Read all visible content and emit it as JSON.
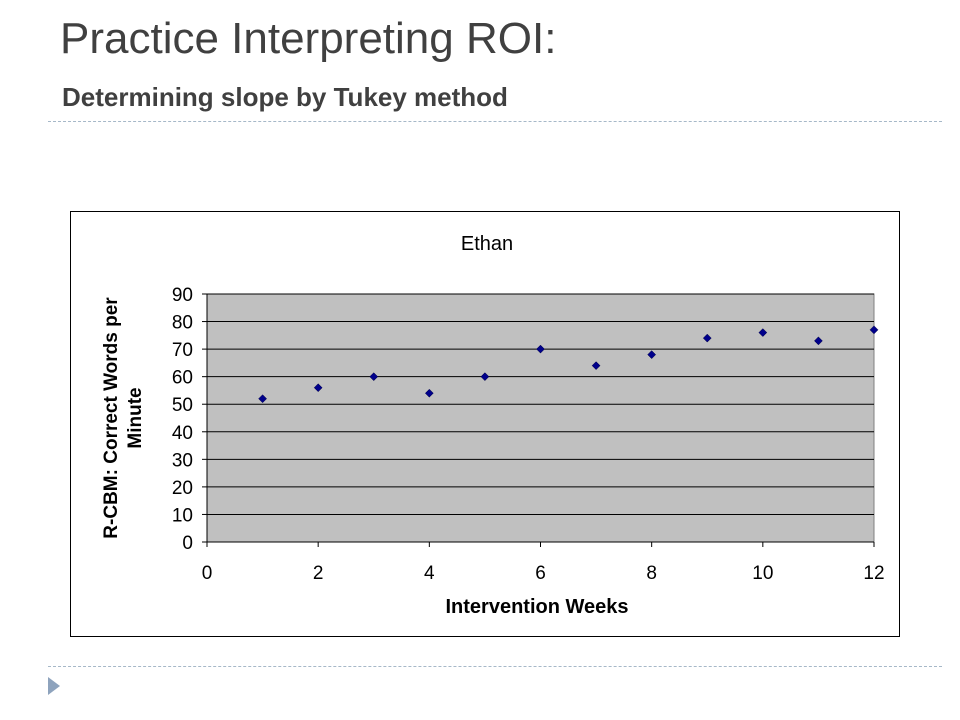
{
  "slide": {
    "title": "Practice Interpreting ROI:",
    "subtitle": "Determining slope by Tukey method"
  },
  "colors": {
    "title": "#404040",
    "plot_background": "#c0c0c0",
    "marker": "#00008b",
    "divider": "#a6b8c8",
    "bullet": "#8ea3bd"
  },
  "chart_data": {
    "type": "scatter",
    "title": "Ethan",
    "xlabel": "Intervention Weeks",
    "ylabel": "R-CBM: Correct Words per Minute",
    "xlim": [
      0,
      12
    ],
    "ylim": [
      0,
      90
    ],
    "xticks": [
      0,
      2,
      4,
      6,
      8,
      10,
      12
    ],
    "yticks": [
      0,
      10,
      20,
      30,
      40,
      50,
      60,
      70,
      80,
      90
    ],
    "grid": "horizontal",
    "marker": "diamond",
    "series": [
      {
        "x": [
          1,
          2,
          3,
          4,
          5,
          6,
          7,
          8,
          9,
          10,
          11,
          12
        ],
        "y": [
          52,
          56,
          60,
          54,
          60,
          70,
          64,
          68,
          74,
          76,
          73,
          77
        ]
      }
    ]
  }
}
